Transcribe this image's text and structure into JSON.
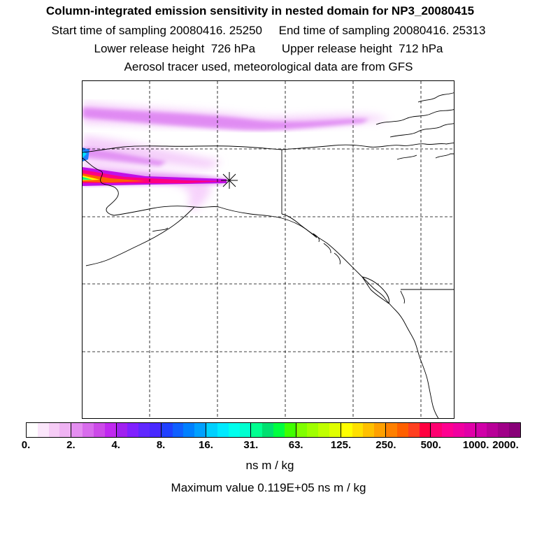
{
  "header": {
    "title": "Column-integrated emission sensitivity in nested domain for NP3_20080415",
    "line2": "Start time of sampling 20080416. 25250     End time of sampling 20080416. 25313",
    "line3": "Lower release height  726 hPa        Upper release height  712 hPa",
    "line4": "Aerosol tracer used, meteorological data are from GFS"
  },
  "colorbar": {
    "ticks": [
      "0.",
      "2.",
      "4.",
      "8.",
      "16.",
      "31.",
      "63.",
      "125.",
      "250.",
      "500.",
      "1000.",
      "2000."
    ],
    "segments": [
      [
        "#ffffff",
        "#fbe6fb",
        "#f6ccf6",
        "#efb3f3"
      ],
      [
        "#e48ef0",
        "#d86cec",
        "#cc4ae8",
        "#c028f0"
      ],
      [
        "#a020f0",
        "#8020ff",
        "#6028ff",
        "#4828ff"
      ],
      [
        "#2040ff",
        "#1060ff",
        "#0080ff",
        "#00a0ff"
      ],
      [
        "#00d0ff",
        "#00eaff",
        "#00ffee",
        "#00ffd0"
      ],
      [
        "#00ff90",
        "#00e070",
        "#00ff40",
        "#40ff00"
      ],
      [
        "#80ff00",
        "#a0ff00",
        "#c0ff00",
        "#e0ff00"
      ],
      [
        "#ffff00",
        "#ffe000",
        "#ffc000",
        "#ffa000"
      ],
      [
        "#ff8000",
        "#ff6000",
        "#ff4020",
        "#ff0040"
      ],
      [
        "#ff0070",
        "#ff0090",
        "#f000a0",
        "#e000a8"
      ],
      [
        "#d000a8",
        "#b80098",
        "#a00088",
        "#880078"
      ]
    ],
    "units": "ns m / kg"
  },
  "footer": {
    "max_value": "Maximum value  0.119E+05 ns m / kg"
  },
  "colors": {
    "plume_light": "#f0b0f8",
    "plume_mid": "#d060f0",
    "plume_core": "#c000f0",
    "grid": "#000000",
    "coast": "#000000"
  },
  "map": {
    "receptor_marker": "asterisk"
  }
}
